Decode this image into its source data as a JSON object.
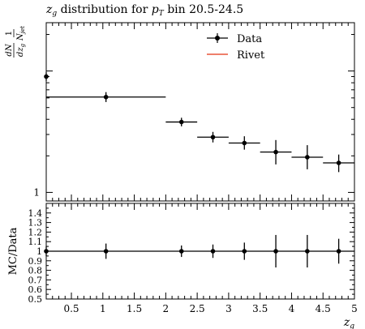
{
  "chart_data": [
    {
      "type": "scatter",
      "title": "z_g distribution for p_T bin 20.5-24.5",
      "title_parts": {
        "var": "z",
        "var_sub": "g",
        "middle": " distribution for ",
        "pt": "p",
        "pt_sub": "T",
        "tail": " bin 20.5-24.5"
      },
      "ylabel": "1/N_jet dN/dz_g",
      "ylabel_parts": {
        "num1": "1",
        "den1": "N",
        "den1_sub": "jet",
        "num2": "dN",
        "den2": "dz",
        "den2_sub": "g"
      },
      "xlim": [
        0.1,
        5.0
      ],
      "yscale": "log",
      "ylim": [
        0.85,
        25
      ],
      "y_tick_labels": [
        {
          "value": 1,
          "label": "1"
        }
      ],
      "legend": {
        "position": "top-right",
        "entries": [
          {
            "label": "Data",
            "style": "marker",
            "color": "#000000"
          },
          {
            "label": "Rivet",
            "style": "line",
            "color": "#e8553a"
          }
        ]
      },
      "series": [
        {
          "name": "Data",
          "points": [
            {
              "x": 0.1,
              "xerr": 0.0,
              "y": 9.0,
              "yerr_up": 0.75,
              "yerr_down": 0.7
            },
            {
              "x": 1.05,
              "xerr": 0.95,
              "y": 6.1,
              "yerr_up": 0.6,
              "yerr_down": 0.55
            },
            {
              "x": 2.25,
              "xerr": 0.25,
              "y": 3.8,
              "yerr_up": 0.32,
              "yerr_down": 0.3
            },
            {
              "x": 2.75,
              "xerr": 0.25,
              "y": 2.85,
              "yerr_up": 0.3,
              "yerr_down": 0.27
            },
            {
              "x": 3.25,
              "xerr": 0.25,
              "y": 2.55,
              "yerr_up": 0.35,
              "yerr_down": 0.3
            },
            {
              "x": 3.75,
              "xerr": 0.25,
              "y": 2.15,
              "yerr_up": 0.55,
              "yerr_down": 0.45
            },
            {
              "x": 4.25,
              "xerr": 0.25,
              "y": 1.95,
              "yerr_up": 0.5,
              "yerr_down": 0.4
            },
            {
              "x": 4.75,
              "xerr": 0.25,
              "y": 1.75,
              "yerr_up": 0.3,
              "yerr_down": 0.28
            }
          ]
        }
      ]
    },
    {
      "type": "scatter",
      "ylabel": "MC/Data",
      "xlabel": "z_g",
      "xlabel_parts": {
        "var": "z",
        "var_sub": "g"
      },
      "xlim": [
        0.1,
        5.0
      ],
      "ylim": [
        0.5,
        1.5
      ],
      "x_tick_labels": [
        {
          "value": 0.5,
          "label": "0.5"
        },
        {
          "value": 1,
          "label": "1"
        },
        {
          "value": 1.5,
          "label": "1.5"
        },
        {
          "value": 2,
          "label": "2"
        },
        {
          "value": 2.5,
          "label": "2.5"
        },
        {
          "value": 3,
          "label": "3"
        },
        {
          "value": 3.5,
          "label": "3.5"
        },
        {
          "value": 4,
          "label": "4"
        },
        {
          "value": 4.5,
          "label": "4.5"
        },
        {
          "value": 5,
          "label": "5"
        }
      ],
      "y_tick_labels": [
        {
          "value": 0.5,
          "label": "0.5"
        },
        {
          "value": 0.6,
          "label": "0.6"
        },
        {
          "value": 0.7,
          "label": "0.7"
        },
        {
          "value": 0.8,
          "label": "0.8"
        },
        {
          "value": 0.9,
          "label": "0.9"
        },
        {
          "value": 1.0,
          "label": "1"
        },
        {
          "value": 1.1,
          "label": "1.1"
        },
        {
          "value": 1.2,
          "label": "1.2"
        },
        {
          "value": 1.3,
          "label": "1.3"
        },
        {
          "value": 1.4,
          "label": "1.4"
        }
      ],
      "reference_line": {
        "y": 1.0
      },
      "series": [
        {
          "name": "Data",
          "points": [
            {
              "x": 0.1,
              "xerr": 0.0,
              "y": 1.0,
              "yerr": 0.05
            },
            {
              "x": 1.05,
              "xerr": 0.95,
              "y": 1.0,
              "yerr": 0.08
            },
            {
              "x": 2.25,
              "xerr": 0.25,
              "y": 1.0,
              "yerr": 0.06
            },
            {
              "x": 2.75,
              "xerr": 0.25,
              "y": 1.0,
              "yerr": 0.07
            },
            {
              "x": 3.25,
              "xerr": 0.25,
              "y": 1.0,
              "yerr": 0.09
            },
            {
              "x": 3.75,
              "xerr": 0.25,
              "y": 1.0,
              "yerr": 0.17
            },
            {
              "x": 4.25,
              "xerr": 0.25,
              "y": 1.0,
              "yerr": 0.17
            },
            {
              "x": 4.75,
              "xerr": 0.25,
              "y": 1.0,
              "yerr": 0.13
            }
          ]
        }
      ]
    }
  ]
}
